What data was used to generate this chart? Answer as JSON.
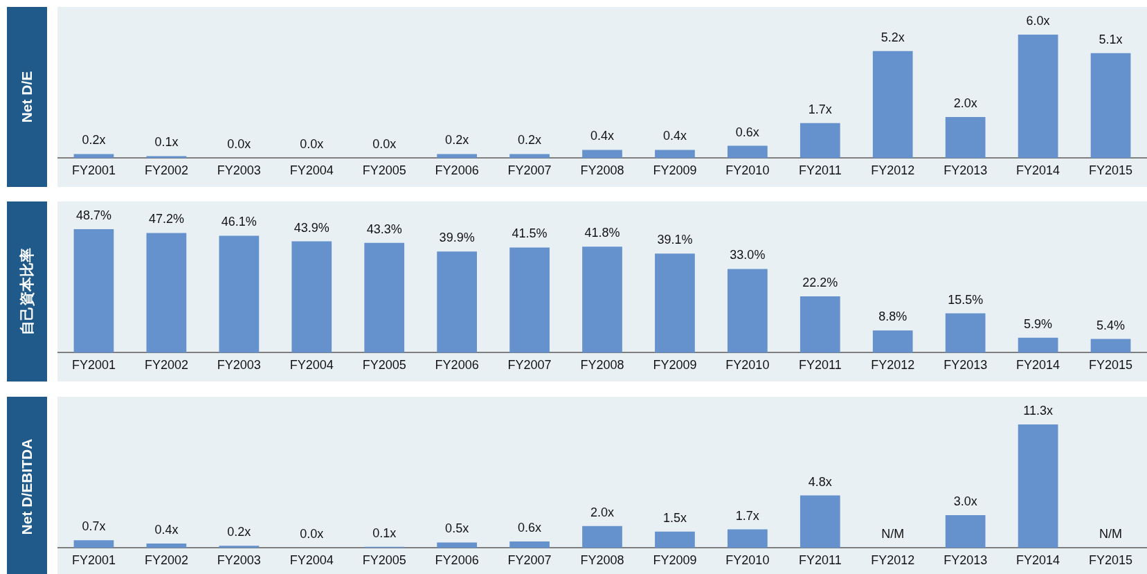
{
  "chart_data": [
    {
      "type": "bar",
      "ylabel": "Net D/E",
      "categories": [
        "FY2001",
        "FY2002",
        "FY2003",
        "FY2004",
        "FY2005",
        "FY2006",
        "FY2007",
        "FY2008",
        "FY2009",
        "FY2010",
        "FY2011",
        "FY2012",
        "FY2013",
        "FY2014",
        "FY2015"
      ],
      "values": [
        0.2,
        0.1,
        0.0,
        0.0,
        0.0,
        0.2,
        0.2,
        0.4,
        0.4,
        0.6,
        1.7,
        5.2,
        2.0,
        6.0,
        5.1
      ],
      "value_labels": [
        "0.2x",
        "0.1x",
        "0.0x",
        "0.0x",
        "0.0x",
        "0.2x",
        "0.2x",
        "0.4x",
        "0.4x",
        "0.6x",
        "1.7x",
        "5.2x",
        "2.0x",
        "6.0x",
        "5.1x"
      ],
      "color": "#6591cc",
      "grid": false,
      "legend": false,
      "tick_labels": "x"
    },
    {
      "type": "bar",
      "ylabel": "自己資本比率",
      "categories": [
        "FY2001",
        "FY2002",
        "FY2003",
        "FY2004",
        "FY2005",
        "FY2006",
        "FY2007",
        "FY2008",
        "FY2009",
        "FY2010",
        "FY2011",
        "FY2012",
        "FY2013",
        "FY2014",
        "FY2015"
      ],
      "values": [
        48.7,
        47.2,
        46.1,
        43.9,
        43.3,
        39.9,
        41.5,
        41.8,
        39.1,
        33.0,
        22.2,
        8.8,
        15.5,
        5.9,
        5.4
      ],
      "value_labels": [
        "48.7%",
        "47.2%",
        "46.1%",
        "43.9%",
        "43.3%",
        "39.9%",
        "41.5%",
        "41.8%",
        "39.1%",
        "33.0%",
        "22.2%",
        "8.8%",
        "15.5%",
        "5.9%",
        "5.4%"
      ],
      "color": "#6591cc",
      "grid": false,
      "legend": false,
      "tick_labels": "x"
    },
    {
      "type": "bar",
      "ylabel": "Net D/EBITDA",
      "categories": [
        "FY2001",
        "FY2002",
        "FY2003",
        "FY2004",
        "FY2005",
        "FY2006",
        "FY2007",
        "FY2008",
        "FY2009",
        "FY2010",
        "FY2011",
        "FY2012",
        "FY2013",
        "FY2014",
        "FY2015"
      ],
      "values": [
        0.7,
        0.4,
        0.2,
        0.0,
        0.1,
        0.5,
        0.6,
        2.0,
        1.5,
        1.7,
        4.8,
        null,
        3.0,
        11.3,
        null
      ],
      "value_labels": [
        "0.7x",
        "0.4x",
        "0.2x",
        "0.0x",
        "0.1x",
        "0.5x",
        "0.6x",
        "2.0x",
        "1.5x",
        "1.7x",
        "4.8x",
        "N/M",
        "3.0x",
        "11.3x",
        "N/M"
      ],
      "color": "#6591cc",
      "grid": false,
      "legend": false,
      "tick_labels": "x"
    }
  ]
}
